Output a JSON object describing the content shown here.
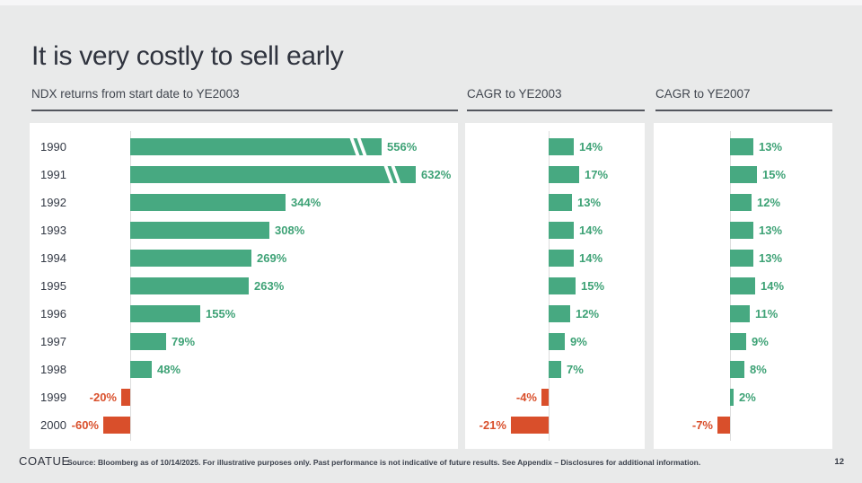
{
  "slide": {
    "title": "It is very costly to sell early",
    "footer": {
      "logo": "COATUE",
      "disclaimer": "Source: Bloomberg as of 10/14/2025. For illustrative purposes only. Past performance is not indicative of future results. See Appendix – Disclosures for additional information.",
      "page_number": "12"
    }
  },
  "colors": {
    "positive": "#47a981",
    "positive_text": "#3ea276",
    "negative": "#d94f2b",
    "background": "#e9eaea",
    "panel": "#ffffff",
    "title_text": "#2f333e"
  },
  "chart_data": [
    {
      "type": "bar",
      "orientation": "horizontal",
      "title": "NDX returns from start date to YE2003",
      "unit": "%",
      "categories": [
        "1990",
        "1991",
        "1992",
        "1993",
        "1994",
        "1995",
        "1996",
        "1997",
        "1998",
        "1999",
        "2000"
      ],
      "values": [
        556,
        632,
        344,
        308,
        269,
        263,
        155,
        79,
        48,
        -20,
        -60
      ],
      "labels": [
        "556%",
        "632%",
        "344%",
        "308%",
        "269%",
        "263%",
        "155%",
        "79%",
        "48%",
        "-20%",
        "-60%"
      ],
      "axis_break_rows": [
        0,
        1
      ],
      "legend": "none",
      "grid": "off",
      "value_label_position": "bar-end"
    },
    {
      "type": "bar",
      "orientation": "horizontal",
      "title": "CAGR to YE2003",
      "unit": "%",
      "categories": [
        "1990",
        "1991",
        "1992",
        "1993",
        "1994",
        "1995",
        "1996",
        "1997",
        "1998",
        "1999",
        "2000"
      ],
      "values": [
        14,
        17,
        13,
        14,
        14,
        15,
        12,
        9,
        7,
        -4,
        -21
      ],
      "labels": [
        "14%",
        "17%",
        "13%",
        "14%",
        "14%",
        "15%",
        "12%",
        "9%",
        "7%",
        "-4%",
        "-21%"
      ],
      "legend": "none",
      "grid": "off",
      "value_label_position": "bar-end"
    },
    {
      "type": "bar",
      "orientation": "horizontal",
      "title": "CAGR to YE2007",
      "unit": "%",
      "categories": [
        "1990",
        "1991",
        "1992",
        "1993",
        "1994",
        "1995",
        "1996",
        "1997",
        "1998",
        "1999",
        "2000"
      ],
      "values": [
        13,
        15,
        12,
        13,
        13,
        14,
        11,
        9,
        8,
        2,
        -7
      ],
      "labels": [
        "13%",
        "15%",
        "12%",
        "13%",
        "13%",
        "14%",
        "11%",
        "9%",
        "8%",
        "2%",
        "-7%"
      ],
      "legend": "none",
      "grid": "off",
      "value_label_position": "bar-end"
    }
  ]
}
